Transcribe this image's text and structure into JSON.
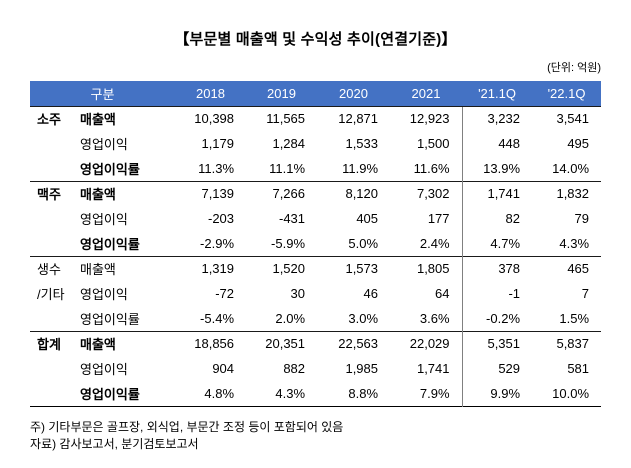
{
  "title": "【부문별 매출액 및 수익성 추이(연결기준)】",
  "unit_note": "(단위: 억원)",
  "colors": {
    "header_bg": "#4472C4",
    "header_text": "#FFFFFF"
  },
  "table": {
    "header": {
      "category_label": "구분",
      "columns": [
        "2018",
        "2019",
        "2020",
        "2021",
        "'21.1Q",
        "'22.1Q"
      ]
    },
    "groups": [
      {
        "name": "소주",
        "name_bold": true,
        "rows": [
          {
            "label": "매출액",
            "bold": true,
            "values": [
              "10,398",
              "11,565",
              "12,871",
              "12,923",
              "3,232",
              "3,541"
            ]
          },
          {
            "label": "영업이익",
            "bold": false,
            "values": [
              "1,179",
              "1,284",
              "1,533",
              "1,500",
              "448",
              "495"
            ]
          },
          {
            "label": "영업이익률",
            "bold": true,
            "values": [
              "11.3%",
              "11.1%",
              "11.9%",
              "11.6%",
              "13.9%",
              "14.0%"
            ]
          }
        ]
      },
      {
        "name": "맥주",
        "name_bold": true,
        "rows": [
          {
            "label": "매출액",
            "bold": true,
            "values": [
              "7,139",
              "7,266",
              "8,120",
              "7,302",
              "1,741",
              "1,832"
            ]
          },
          {
            "label": "영업이익",
            "bold": false,
            "values": [
              "-203",
              "-431",
              "405",
              "177",
              "82",
              "79"
            ]
          },
          {
            "label": "영업이익률",
            "bold": true,
            "values": [
              "-2.9%",
              "-5.9%",
              "5.0%",
              "2.4%",
              "4.7%",
              "4.3%"
            ]
          }
        ]
      },
      {
        "name": "생수\n/기타",
        "name_bold": false,
        "rows": [
          {
            "label": "매출액",
            "bold": false,
            "values": [
              "1,319",
              "1,520",
              "1,573",
              "1,805",
              "378",
              "465"
            ]
          },
          {
            "label": "영업이익",
            "bold": false,
            "values": [
              "-72",
              "30",
              "46",
              "64",
              "-1",
              "7"
            ]
          },
          {
            "label": "영업이익률",
            "bold": false,
            "values": [
              "-5.4%",
              "2.0%",
              "3.0%",
              "3.6%",
              "-0.2%",
              "1.5%"
            ]
          }
        ]
      },
      {
        "name": "합계",
        "name_bold": true,
        "rows": [
          {
            "label": "매출액",
            "bold": true,
            "values": [
              "18,856",
              "20,351",
              "22,563",
              "22,029",
              "5,351",
              "5,837"
            ]
          },
          {
            "label": "영업이익",
            "bold": false,
            "values": [
              "904",
              "882",
              "1,985",
              "1,741",
              "529",
              "581"
            ]
          },
          {
            "label": "영업이익률",
            "bold": true,
            "values": [
              "4.8%",
              "4.3%",
              "8.8%",
              "7.9%",
              "9.9%",
              "10.0%"
            ]
          }
        ]
      }
    ]
  },
  "footnotes": [
    "주) 기타부문은 골프장, 외식업, 부문간 조정 등이 포함되어 있음",
    "자료) 감사보고서, 분기검토보고서"
  ]
}
